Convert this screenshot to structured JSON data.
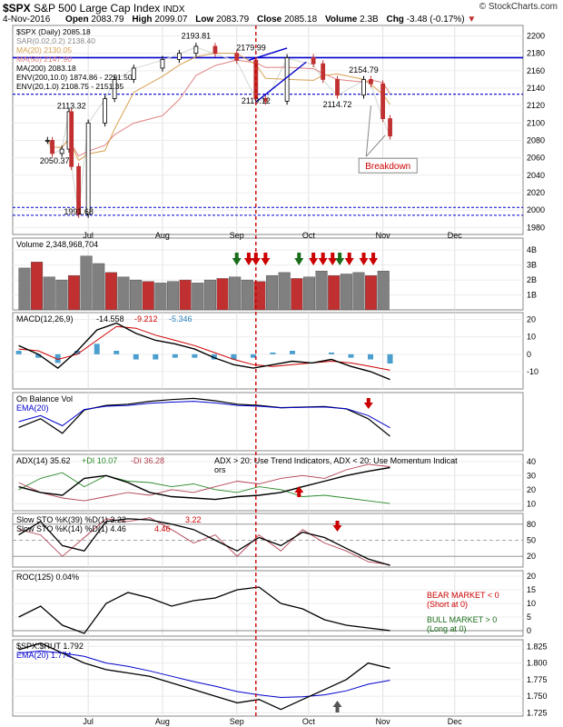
{
  "header": {
    "ticker": "$SPX",
    "name": "S&P 500 Large Cap Index",
    "exchange": "INDX",
    "source": "© StockCharts.com",
    "date": "4-Nov-2016",
    "open_label": "Open",
    "open": "2083.79",
    "high_label": "High",
    "high": "2099.07",
    "low_label": "Low",
    "low": "2083.79",
    "close_label": "Close",
    "close": "2085.18",
    "volume_label": "Volume",
    "volume": "2.3B",
    "chg_label": "Chg",
    "chg": "-3.48 (-0.17%)"
  },
  "colors": {
    "price": "#000000",
    "up": "#808080",
    "down": "#c03030",
    "ma20": "#d6a050",
    "ma50": "#e08080",
    "ma200": "#aaaaaa",
    "env": "#000000",
    "blue": "#0000cc",
    "red_dash": "#cc0000",
    "green_arrow": "#1a6b1a",
    "red_arrow": "#cc0000",
    "annotation": "#cc0000"
  },
  "chart_data": [
    {
      "type": "line",
      "panel": "price",
      "legend": [
        "$SPX (Daily) 2085.18",
        "SAR(0.02,0.2) 2138.40",
        "MA(20) 2130.05",
        "MA(50) 2147.90",
        "MA(200) 2083.18",
        "ENV(200,10.0) 1874.86 - 2291.50",
        "ENV(20,1.0) 2108.75 - 2151.35"
      ],
      "x_ticks": [
        "Jul",
        "Aug",
        "Sep",
        "Oct",
        "Nov",
        "Dec"
      ],
      "y_ticks": [
        1980,
        2000,
        2020,
        2040,
        2060,
        2080,
        2100,
        2120,
        2140,
        2160,
        2180,
        2200
      ],
      "ylim": [
        1972,
        2212
      ],
      "x": [
        "Jun 14",
        "Jun 16",
        "Jun 20",
        "Jun 23",
        "Jun 24",
        "Jun 27",
        "Jul 1",
        "Jul 8",
        "Jul 12",
        "Jul 20",
        "Aug 1",
        "Aug 8",
        "Aug 15",
        "Aug 23",
        "Sep 1",
        "Sep 9",
        "Sep 13",
        "Sep 22",
        "Oct 3",
        "Oct 7",
        "Oct 13",
        "Oct 24",
        "Oct 27",
        "Nov 1",
        "Nov 4"
      ],
      "close": [
        2080,
        2065,
        2070,
        2113,
        2050,
        1995,
        2100,
        2128,
        2150,
        2163,
        2173,
        2180,
        2188,
        2180,
        2172,
        2128,
        2125,
        2175,
        2168,
        2150,
        2132,
        2150,
        2145,
        2105,
        2085
      ],
      "annotations": [
        {
          "text": "2193.81",
          "x": "Aug 15",
          "y": 2193.81
        },
        {
          "text": "2179.99",
          "x": "Sep 7",
          "y": 2179.99
        },
        {
          "text": "2154.79",
          "x": "Oct 24",
          "y": 2154.79
        },
        {
          "text": "2119.12",
          "x": "Sep 9",
          "y": 2119.12
        },
        {
          "text": "2114.72",
          "x": "Oct 13",
          "y": 2114.72
        },
        {
          "text": "2113.32",
          "x": "Jun 24",
          "y": 2113.32
        },
        {
          "text": "2050.37",
          "x": "Jun 17",
          "y": 2050.37
        },
        {
          "text": "1991.68",
          "x": "Jun 27",
          "y": 1991.68
        }
      ],
      "horizontal_levels": [
        2175,
        2133,
        2003,
        1994
      ],
      "callout": "Breakdown"
    },
    {
      "type": "bar",
      "panel": "volume",
      "legend": "Volume 2,348,968,704",
      "y_ticks": [
        "1B",
        "2B",
        "3B",
        "4B"
      ],
      "values_B": [
        2.8,
        3.2,
        2.2,
        2.0,
        2.3,
        3.6,
        3.1,
        2.5,
        2.2,
        2.0,
        1.9,
        1.8,
        1.9,
        2.0,
        1.8,
        2.0,
        2.1,
        2.2,
        2.0,
        1.9,
        2.3,
        2.5,
        2.1,
        2.2,
        2.6,
        2.3,
        2.4,
        2.5,
        2.3,
        2.6
      ]
    },
    {
      "type": "line",
      "panel": "macd",
      "legend": [
        "MACD(12,26,9)",
        "-14.558",
        "-9.212",
        "-5.346"
      ],
      "y_ticks": [
        20,
        10,
        0,
        -10
      ],
      "macd": [
        5,
        0,
        -8,
        2,
        14,
        18,
        12,
        8,
        6,
        3,
        -2,
        -6,
        -8,
        -6,
        -4,
        -5,
        -3,
        -7,
        -10,
        -14.558
      ],
      "signal": [
        3,
        2,
        -3,
        0,
        8,
        16,
        15,
        11,
        8,
        5,
        1,
        -3,
        -6,
        -7,
        -6,
        -5,
        -4,
        -5,
        -7,
        -9.212
      ]
    },
    {
      "type": "line",
      "panel": "obv",
      "legend": [
        "On Balance Vol",
        "EMA(20)"
      ]
    },
    {
      "type": "line",
      "panel": "adx",
      "legend": [
        "ADX(14) 35.62",
        "+DI 10.07",
        "-DI 36.28",
        "ADX > 20: Use Trend Indicators, ADX < 20: Use Momentum Indicators"
      ],
      "y_ticks": [
        40,
        30,
        20,
        10
      ]
    },
    {
      "type": "line",
      "panel": "stochastics",
      "legend": [
        "Slow STO %K(39) %D(1) 3.22",
        "3.22",
        "Slow STO %K(14) %D(1) 4.46",
        "4.46"
      ],
      "y_ticks": [
        80,
        50,
        20
      ]
    },
    {
      "type": "line",
      "panel": "roc",
      "legend": "ROC(125) 0.04%",
      "y_ticks": [
        20,
        15,
        10,
        5,
        0
      ],
      "notes": [
        "BEAR MARKET < 0",
        "(Short at 0)",
        "BULL MARKET > 0",
        "(Long at 0)"
      ]
    },
    {
      "type": "line",
      "panel": "ratio",
      "legend": [
        "$SPX:$RUT 1.792",
        "EMA(20) 1.774"
      ],
      "y_ticks": [
        "1.825",
        "1.800",
        "1.775",
        "1.750",
        "1.725"
      ]
    }
  ]
}
